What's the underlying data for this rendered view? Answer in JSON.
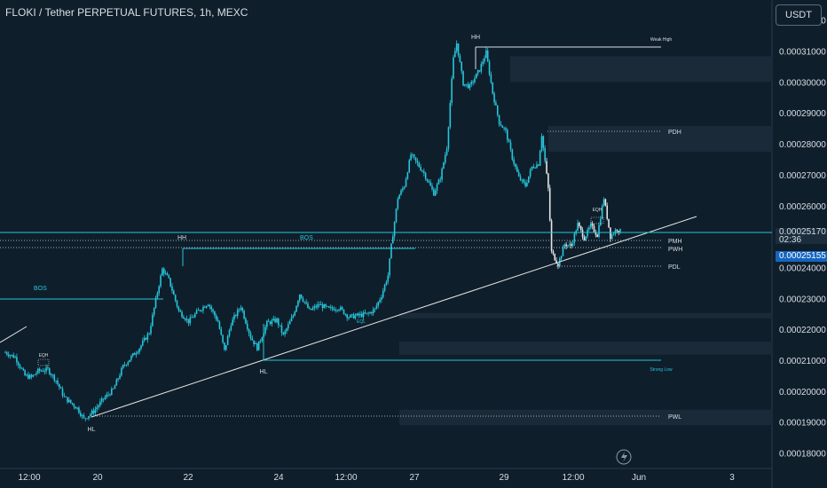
{
  "header": {
    "title": "FLOKI / Tether PERPETUAL FUTURES, 1h, MEXC",
    "currency": "USDT"
  },
  "price_labels": {
    "last_price": "0.00025170",
    "countdown": "02:36",
    "crosshair_price": "0.00025155"
  },
  "colors": {
    "background": "#0f1e2b",
    "candle": "#26c6da",
    "bearish_recent": "#e6e6e6",
    "structure": "#26c6da",
    "trendline": "#e6e6e6"
  },
  "chart_data": {
    "type": "candlestick",
    "title": "FLOKI / Tether PERPETUAL FUTURES, 1h, MEXC",
    "y_ticks": [
      "0.00018000",
      "0.00019000",
      "0.00020000",
      "0.00021000",
      "0.00022000",
      "0.00023000",
      "0.00024000",
      "0.00025000",
      "0.00026000",
      "0.00027000",
      "0.00028000",
      "0.00029000",
      "0.00030000",
      "0.00031000",
      "0.00032000"
    ],
    "ylim": [
      0.000175,
      0.0003265
    ],
    "x_ticks": [
      "12:00",
      "20",
      "22",
      "24",
      "12:00",
      "27",
      "29",
      "12:00",
      "Jun",
      "3"
    ],
    "close_path": [
      {
        "t": 0,
        "p": 0.0002125
      },
      {
        "t": 6,
        "p": 0.000211
      },
      {
        "t": 12,
        "p": 0.000205
      },
      {
        "t": 16,
        "p": 0.0002045
      },
      {
        "t": 20,
        "p": 0.0002065
      },
      {
        "t": 26,
        "p": 0.000207
      },
      {
        "t": 31,
        "p": 0.0002035
      },
      {
        "t": 36,
        "p": 0.000198
      },
      {
        "t": 44,
        "p": 0.0001945
      },
      {
        "t": 48,
        "p": 0.000191
      },
      {
        "t": 54,
        "p": 0.0001935
      },
      {
        "t": 60,
        "p": 0.0001975
      },
      {
        "t": 66,
        "p": 0.0002005
      },
      {
        "t": 72,
        "p": 0.000208
      },
      {
        "t": 82,
        "p": 0.000214
      },
      {
        "t": 88,
        "p": 0.000219
      },
      {
        "t": 92,
        "p": 0.0002295
      },
      {
        "t": 96,
        "p": 0.0002395
      },
      {
        "t": 100,
        "p": 0.000236
      },
      {
        "t": 106,
        "p": 0.000226
      },
      {
        "t": 112,
        "p": 0.0002225
      },
      {
        "t": 118,
        "p": 0.000226
      },
      {
        "t": 124,
        "p": 0.0002285
      },
      {
        "t": 130,
        "p": 0.0002225
      },
      {
        "t": 134,
        "p": 0.000213
      },
      {
        "t": 138,
        "p": 0.000222
      },
      {
        "t": 144,
        "p": 0.0002275
      },
      {
        "t": 150,
        "p": 0.0002175
      },
      {
        "t": 154,
        "p": 0.000214
      },
      {
        "t": 160,
        "p": 0.000222
      },
      {
        "t": 166,
        "p": 0.000223
      },
      {
        "t": 170,
        "p": 0.000218
      },
      {
        "t": 176,
        "p": 0.0002245
      },
      {
        "t": 180,
        "p": 0.0002315
      },
      {
        "t": 186,
        "p": 0.000226
      },
      {
        "t": 192,
        "p": 0.000228
      },
      {
        "t": 198,
        "p": 0.0002265
      },
      {
        "t": 204,
        "p": 0.000227
      },
      {
        "t": 210,
        "p": 0.000224
      },
      {
        "t": 216,
        "p": 0.0002245
      },
      {
        "t": 222,
        "p": 0.000225
      },
      {
        "t": 226,
        "p": 0.0002265
      },
      {
        "t": 230,
        "p": 0.000231
      },
      {
        "t": 234,
        "p": 0.0002375
      },
      {
        "t": 236,
        "p": 0.000247
      },
      {
        "t": 240,
        "p": 0.0002625
      },
      {
        "t": 244,
        "p": 0.0002665
      },
      {
        "t": 248,
        "p": 0.0002765
      },
      {
        "t": 252,
        "p": 0.0002735
      },
      {
        "t": 256,
        "p": 0.0002705
      },
      {
        "t": 262,
        "p": 0.000264
      },
      {
        "t": 266,
        "p": 0.000269
      },
      {
        "t": 270,
        "p": 0.000279
      },
      {
        "t": 274,
        "p": 0.0003075
      },
      {
        "t": 276,
        "p": 0.0003125
      },
      {
        "t": 280,
        "p": 0.0002995
      },
      {
        "t": 284,
        "p": 0.0002985
      },
      {
        "t": 290,
        "p": 0.000304
      },
      {
        "t": 294,
        "p": 0.0003095
      },
      {
        "t": 298,
        "p": 0.0002965
      },
      {
        "t": 302,
        "p": 0.000287
      },
      {
        "t": 306,
        "p": 0.000284
      },
      {
        "t": 310,
        "p": 0.0002755
      },
      {
        "t": 314,
        "p": 0.000269
      },
      {
        "t": 318,
        "p": 0.0002665
      },
      {
        "t": 322,
        "p": 0.0002725
      },
      {
        "t": 326,
        "p": 0.0002735
      },
      {
        "t": 328,
        "p": 0.000283
      },
      {
        "t": 332,
        "p": 0.0002655
      },
      {
        "t": 334,
        "p": 0.000245
      },
      {
        "t": 338,
        "p": 0.000241
      },
      {
        "t": 342,
        "p": 0.0002475
      },
      {
        "t": 346,
        "p": 0.000247
      },
      {
        "t": 350,
        "p": 0.000254
      },
      {
        "t": 354,
        "p": 0.0002495
      },
      {
        "t": 358,
        "p": 0.0002535
      },
      {
        "t": 362,
        "p": 0.0002505
      },
      {
        "t": 366,
        "p": 0.0002625
      },
      {
        "t": 370,
        "p": 0.00025
      },
      {
        "t": 374,
        "p": 0.0002525
      },
      {
        "t": 376,
        "p": 0.0002517
      }
    ],
    "levels": [
      {
        "label": "Weak High",
        "price": 0.0003145
      },
      {
        "label": "PDH",
        "price": 0.0002858
      },
      {
        "label": "PWH",
        "price": 0.0002466
      },
      {
        "label": "PMH",
        "price": 0.0002492
      },
      {
        "label": "PDL",
        "price": 0.0002411
      },
      {
        "label": "Strong Low",
        "price": 0.0002081
      },
      {
        "label": "PWL",
        "price": 0.0001894
      }
    ],
    "zones": [
      {
        "top": 0.0003083,
        "bottom": 0.0003
      },
      {
        "top": 0.0002858,
        "bottom": 0.0002774
      },
      {
        "top": 0.0002253,
        "bottom": 0.0002235
      },
      {
        "top": 0.000216,
        "bottom": 0.0002118
      },
      {
        "top": 0.000194,
        "bottom": 0.000189
      }
    ],
    "annotations": [
      "HH",
      "HH",
      "HL",
      "HL",
      "BOS",
      "BOS",
      "EQH",
      "EQH",
      "EQL"
    ]
  }
}
